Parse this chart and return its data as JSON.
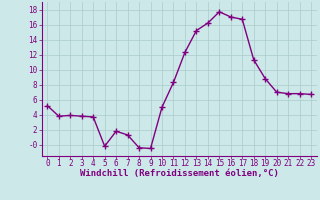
{
  "x": [
    0,
    1,
    2,
    3,
    4,
    5,
    6,
    7,
    8,
    9,
    10,
    11,
    12,
    13,
    14,
    15,
    16,
    17,
    18,
    19,
    20,
    21,
    22,
    23
  ],
  "y": [
    5.2,
    3.8,
    3.9,
    3.8,
    3.7,
    -0.2,
    1.8,
    1.3,
    -0.4,
    -0.5,
    5.0,
    8.3,
    12.3,
    15.2,
    16.2,
    17.7,
    17.0,
    16.7,
    11.3,
    8.8,
    7.0,
    6.8,
    6.8,
    6.7
  ],
  "line_color": "#800080",
  "marker": "+",
  "marker_size": 4,
  "linewidth": 1.0,
  "bg_color": "#cce8e8",
  "grid_color": "#aacccc",
  "xlabel": "Windchill (Refroidissement éolien,°C)",
  "xlim": [
    -0.5,
    23.5
  ],
  "ylim": [
    -1.5,
    19.0
  ],
  "yticks": [
    0,
    2,
    4,
    6,
    8,
    10,
    12,
    14,
    16,
    18
  ],
  "ytick_labels": [
    "-0",
    "2",
    "4",
    "6",
    "8",
    "10",
    "12",
    "14",
    "16",
    "18"
  ],
  "xticks": [
    0,
    1,
    2,
    3,
    4,
    5,
    6,
    7,
    8,
    9,
    10,
    11,
    12,
    13,
    14,
    15,
    16,
    17,
    18,
    19,
    20,
    21,
    22,
    23
  ],
  "tick_fontsize": 5.5,
  "xlabel_fontsize": 6.5
}
